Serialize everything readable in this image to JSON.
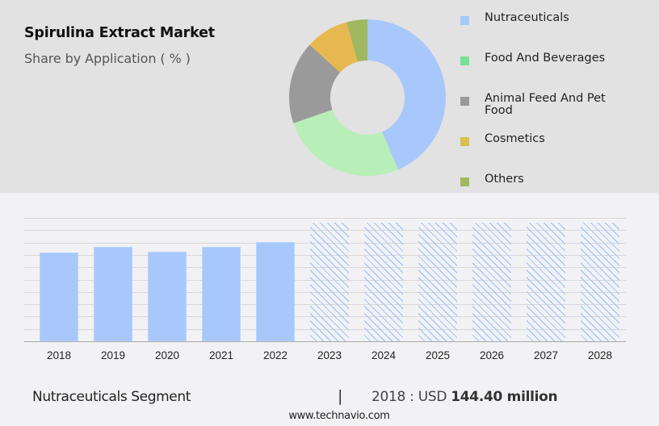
{
  "header": {
    "title": "Spirulina Extract Market",
    "subtitle": "Share by Application ( % )"
  },
  "legend": [
    {
      "label": "Nutraceuticals",
      "color": "#a8c8f8"
    },
    {
      "label": "Food And Beverages",
      "color": "#78e098"
    },
    {
      "label": "Animal Feed And Pet Food",
      "color": "#999999"
    },
    {
      "label": "Cosmetics",
      "color": "#d8c050"
    },
    {
      "label": "Others",
      "color": "#a0b860"
    }
  ],
  "footer": {
    "segment": "Nutraceuticals Segment",
    "separator": "|",
    "year_prefix": "2018 : USD ",
    "value": "144.40 million",
    "url": "www.technavio.com"
  },
  "chart_data": [
    {
      "type": "pie",
      "title": "Spirulina Extract Market",
      "subtitle": "Share by Application ( % )",
      "donut": true,
      "categories": [
        "Nutraceuticals",
        "Food And Beverages",
        "Animal Feed And Pet Food",
        "Cosmetics",
        "Others"
      ],
      "values": [
        43.6,
        26.1,
        17.1,
        8.9,
        4.3
      ],
      "colors": [
        "#a8c8fc",
        "#b8eeb8",
        "#9a9a9a",
        "#e8b850",
        "#a0b860"
      ],
      "legend_position": "right"
    },
    {
      "type": "bar",
      "title": "Nutraceuticals Segment",
      "categories": [
        "2018",
        "2019",
        "2020",
        "2021",
        "2022",
        "2023",
        "2024",
        "2025",
        "2026",
        "2027",
        "2028"
      ],
      "values": [
        144.4,
        153.0,
        145.7,
        153.6,
        161.5,
        null,
        null,
        null,
        null,
        null,
        null
      ],
      "forecast": [
        false,
        false,
        false,
        false,
        false,
        true,
        true,
        true,
        true,
        true,
        true
      ],
      "unit": "USD million",
      "xlabel": "",
      "ylabel": "",
      "ylim": [
        0,
        192
      ],
      "grid": true,
      "annotation": "2018 : USD 144.40 million",
      "bar_color": "#a8c8fc"
    }
  ]
}
